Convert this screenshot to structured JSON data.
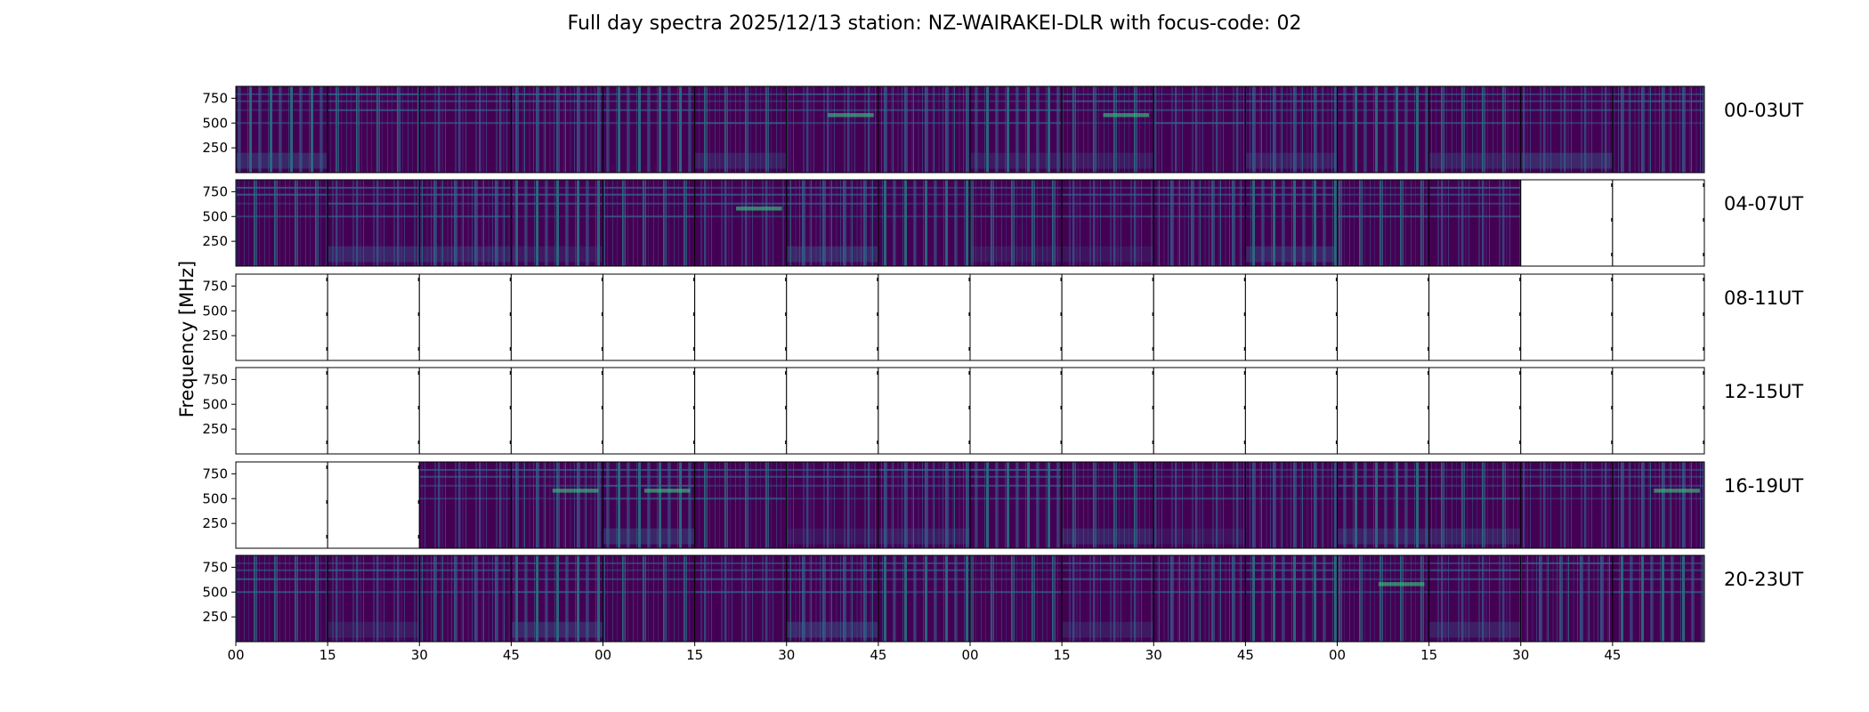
{
  "chart_data": {
    "type": "heatmap",
    "title": "Full day spectra 2025/12/13 station: NZ-WAIRAKEI-DLR with focus-code: 02",
    "ylabel": "Frequency [MHz]",
    "xlabel": "",
    "y_ticks": [
      "750",
      "500",
      "250"
    ],
    "y_tick_values": [
      750,
      500,
      250
    ],
    "ylim": [
      0,
      870
    ],
    "x_ticks": [
      "00",
      "15",
      "30",
      "45",
      "00",
      "15",
      "30",
      "45",
      "00",
      "15",
      "30",
      "45",
      "00",
      "15",
      "30",
      "45"
    ],
    "panels_per_row": 16,
    "panel_minutes": 15,
    "colormap": "viridis",
    "colors": {
      "empty": "#ffffff",
      "low": "#440154",
      "mid": "#31688e",
      "high": "#35b779",
      "peak": "#fde725"
    },
    "rows": [
      {
        "label": "00-03UT",
        "has_data": [
          1,
          1,
          1,
          1,
          1,
          1,
          1,
          1,
          1,
          1,
          1,
          1,
          1,
          1,
          1,
          1
        ]
      },
      {
        "label": "04-07UT",
        "has_data": [
          1,
          1,
          1,
          1,
          1,
          1,
          1,
          1,
          1,
          1,
          1,
          1,
          1,
          1,
          0,
          0
        ]
      },
      {
        "label": "08-11UT",
        "has_data": [
          0,
          0,
          0,
          0,
          0,
          0,
          0,
          0,
          0,
          0,
          0,
          0,
          0,
          0,
          0,
          0
        ]
      },
      {
        "label": "12-15UT",
        "has_data": [
          0,
          0,
          0,
          0,
          0,
          0,
          0,
          0,
          0,
          0,
          0,
          0,
          0,
          0,
          0,
          0
        ]
      },
      {
        "label": "16-19UT",
        "has_data": [
          0,
          0,
          1,
          1,
          1,
          1,
          1,
          1,
          1,
          1,
          1,
          1,
          1,
          1,
          1,
          1
        ]
      },
      {
        "label": "20-23UT",
        "has_data": [
          1,
          1,
          1,
          1,
          1,
          1,
          1,
          1,
          1,
          1,
          1,
          1,
          1,
          1,
          1,
          1
        ]
      }
    ]
  }
}
